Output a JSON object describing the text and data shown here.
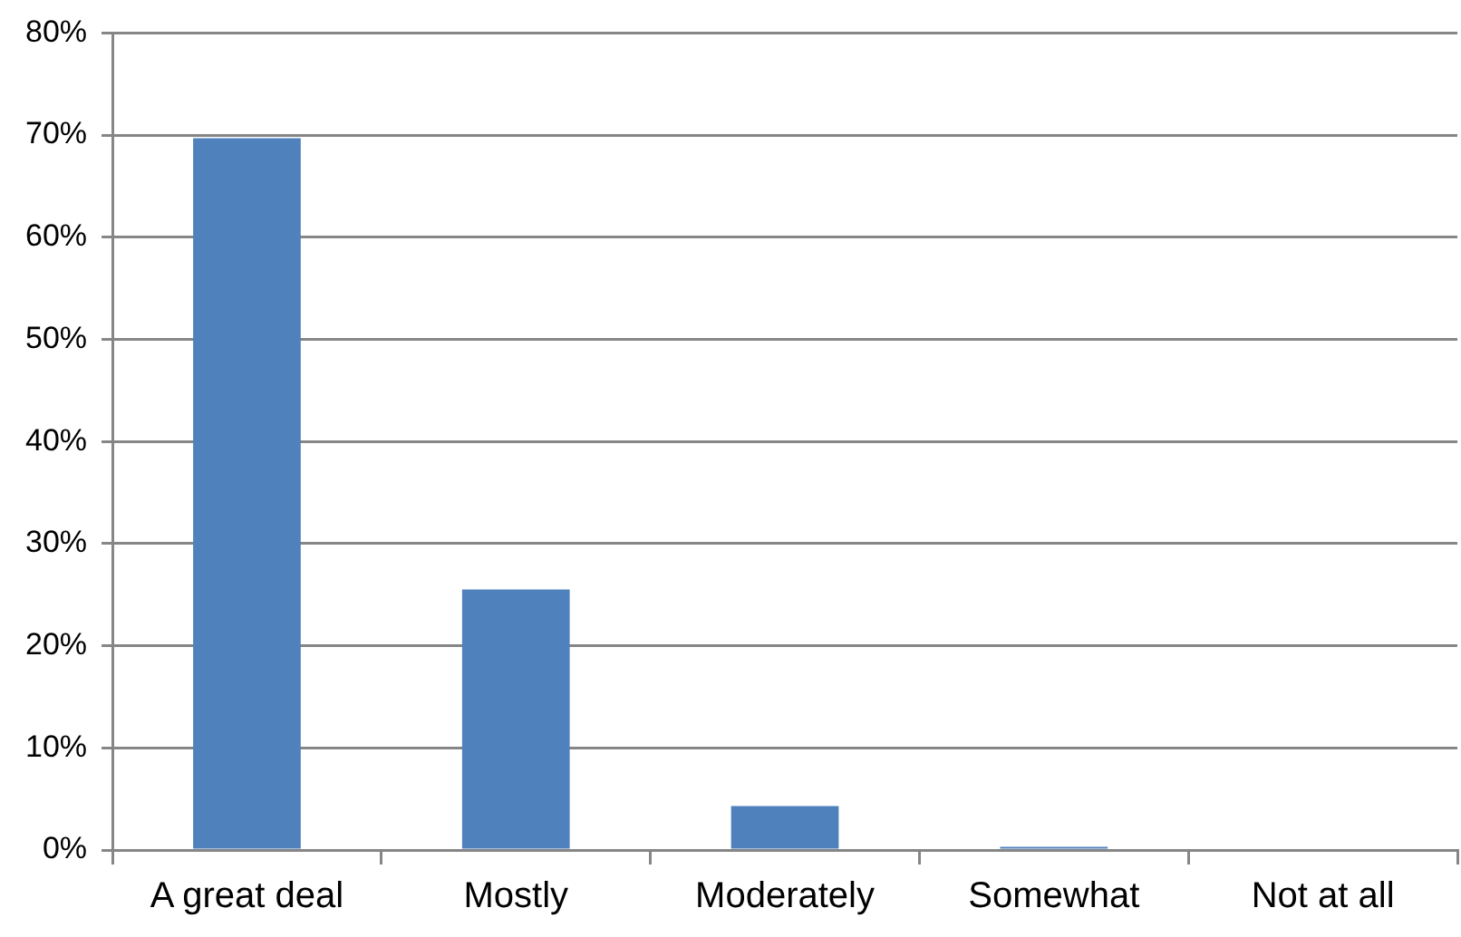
{
  "chart_data": {
    "type": "bar",
    "categories": [
      "A great deal",
      "Mostly",
      "Moderately",
      "Somewhat",
      "Not at all"
    ],
    "values": [
      69.7,
      25.5,
      4.3,
      0.3,
      0
    ],
    "color": "#4f81bd",
    "ylim": [
      0,
      80
    ],
    "yticks": [
      {
        "value": 0,
        "label": "0%"
      },
      {
        "value": 10,
        "label": "10%"
      },
      {
        "value": 20,
        "label": "20%"
      },
      {
        "value": 30,
        "label": "30%"
      },
      {
        "value": 40,
        "label": "40%"
      },
      {
        "value": 50,
        "label": "50%"
      },
      {
        "value": 60,
        "label": "60%"
      },
      {
        "value": 70,
        "label": "70%"
      },
      {
        "value": 80,
        "label": "80%"
      }
    ],
    "grid": "y",
    "legend": false
  }
}
